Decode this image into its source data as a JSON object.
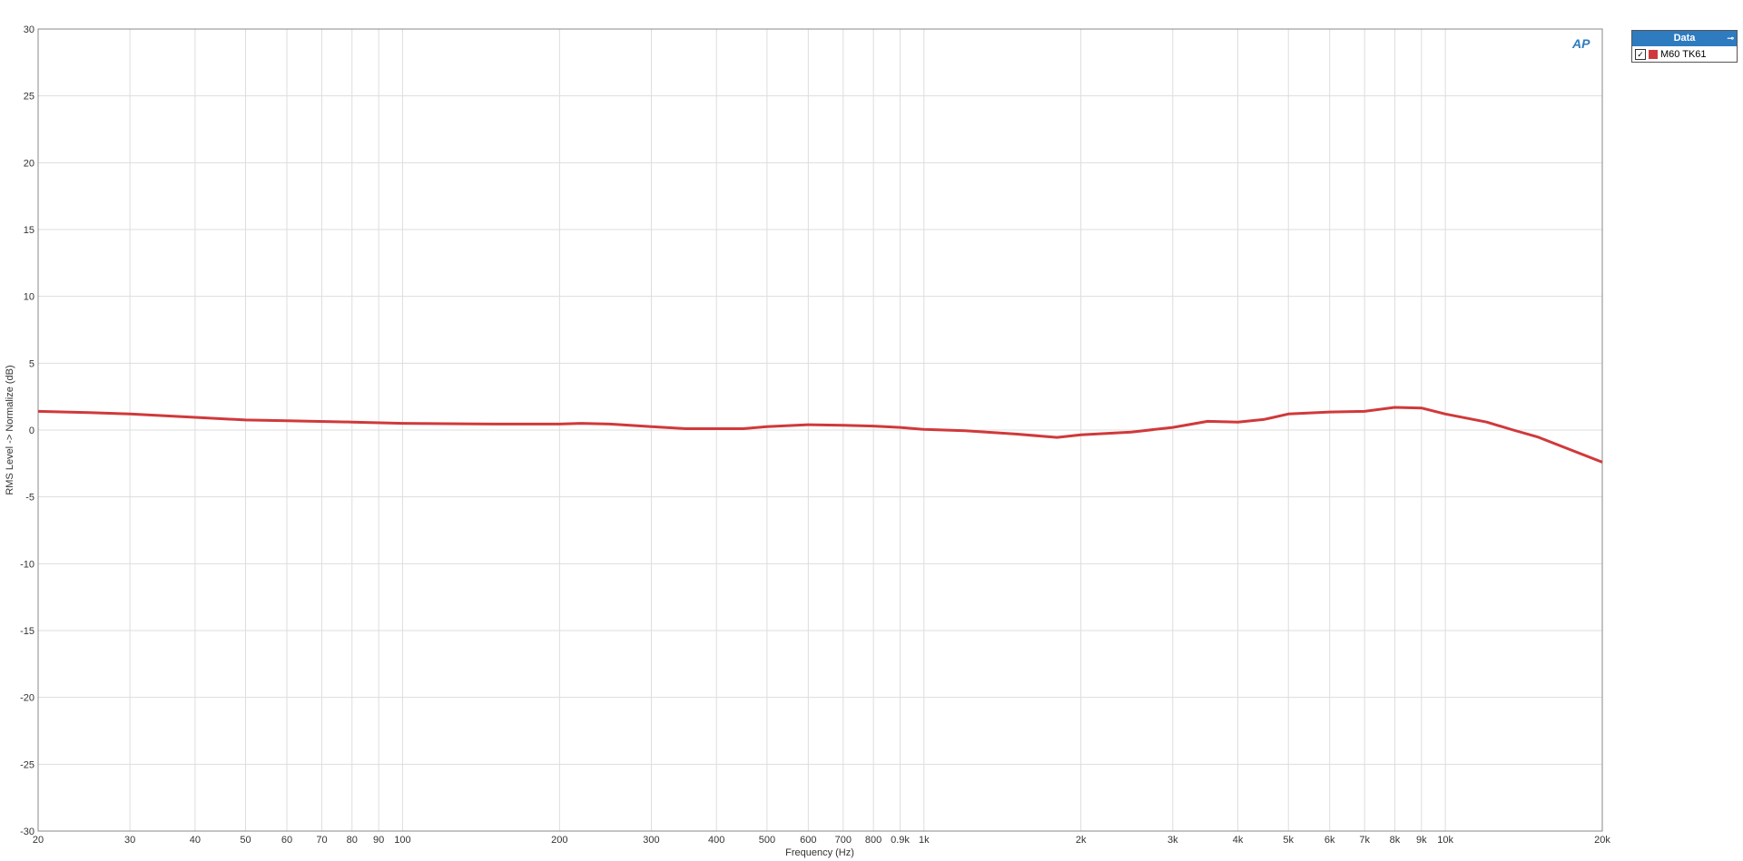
{
  "chart_data": {
    "type": "line",
    "xlabel": "Frequency (Hz)",
    "ylabel": "RMS Level -> Normalize (dB)",
    "xscale": "log",
    "xlim": [
      20,
      20000
    ],
    "ylim": [
      -30,
      30
    ],
    "grid": true,
    "legend_placement": "right",
    "x_ticks": [
      {
        "v": 20,
        "label": "20"
      },
      {
        "v": 30,
        "label": "30"
      },
      {
        "v": 40,
        "label": "40"
      },
      {
        "v": 50,
        "label": "50"
      },
      {
        "v": 60,
        "label": "60"
      },
      {
        "v": 70,
        "label": "70"
      },
      {
        "v": 80,
        "label": "80"
      },
      {
        "v": 90,
        "label": "90"
      },
      {
        "v": 100,
        "label": "100"
      },
      {
        "v": 200,
        "label": "200"
      },
      {
        "v": 300,
        "label": "300"
      },
      {
        "v": 400,
        "label": "400"
      },
      {
        "v": 500,
        "label": "500"
      },
      {
        "v": 600,
        "label": "600"
      },
      {
        "v": 700,
        "label": "700"
      },
      {
        "v": 800,
        "label": "800"
      },
      {
        "v": 900,
        "label": "0.9k"
      },
      {
        "v": 1000,
        "label": "1k"
      },
      {
        "v": 2000,
        "label": "2k"
      },
      {
        "v": 3000,
        "label": "3k"
      },
      {
        "v": 4000,
        "label": "4k"
      },
      {
        "v": 5000,
        "label": "5k"
      },
      {
        "v": 6000,
        "label": "6k"
      },
      {
        "v": 7000,
        "label": "7k"
      },
      {
        "v": 8000,
        "label": "8k"
      },
      {
        "v": 9000,
        "label": "9k"
      },
      {
        "v": 10000,
        "label": "10k"
      },
      {
        "v": 20000,
        "label": "20k"
      }
    ],
    "y_ticks": [
      30,
      25,
      20,
      15,
      10,
      5,
      0,
      -5,
      -10,
      -15,
      -20,
      -25,
      -30
    ],
    "series": [
      {
        "name": "M60 TK61",
        "color": "#d0393b",
        "x": [
          20,
          25,
          30,
          40,
          50,
          60,
          80,
          100,
          150,
          200,
          220,
          250,
          300,
          350,
          450,
          500,
          600,
          700,
          800,
          900,
          1000,
          1200,
          1500,
          1800,
          2000,
          2500,
          3000,
          3500,
          4000,
          4500,
          5000,
          6000,
          7000,
          8000,
          9000,
          10000,
          12000,
          13500,
          15000,
          20000
        ],
        "y": [
          1.4,
          1.3,
          1.2,
          0.95,
          0.75,
          0.7,
          0.6,
          0.5,
          0.45,
          0.45,
          0.5,
          0.45,
          0.25,
          0.1,
          0.1,
          0.25,
          0.4,
          0.35,
          0.3,
          0.2,
          0.05,
          -0.05,
          -0.3,
          -0.55,
          -0.35,
          -0.15,
          0.2,
          0.65,
          0.6,
          0.8,
          1.2,
          1.35,
          1.4,
          1.7,
          1.65,
          1.2,
          0.6,
          0.0,
          -0.5,
          -2.4
        ]
      }
    ]
  },
  "legend": {
    "title": "Data",
    "checked": true
  },
  "logo": "AP"
}
